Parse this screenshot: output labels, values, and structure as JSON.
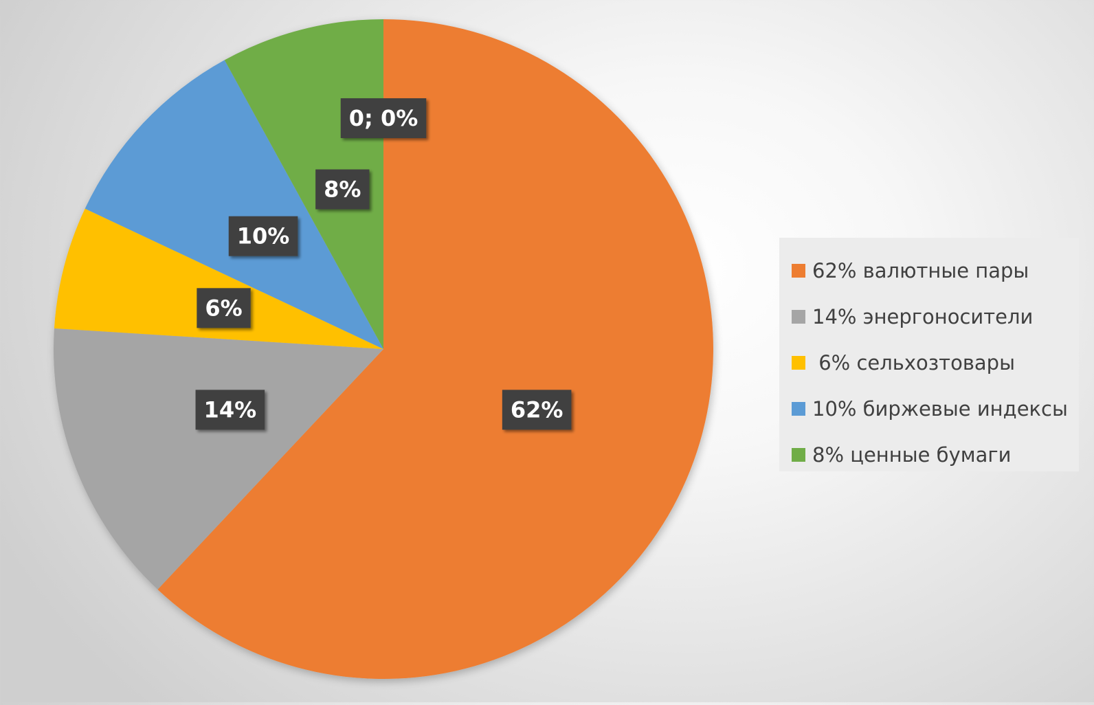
{
  "chart_data": {
    "type": "pie",
    "start_angle_deg": 0,
    "direction": "clockwise",
    "slices": [
      {
        "label": "62%",
        "value": 62,
        "color": "#ED7D31"
      },
      {
        "label": "14%",
        "value": 14,
        "color": "#A5A5A5"
      },
      {
        "label": "6%",
        "value": 6,
        "color": "#FFC000"
      },
      {
        "label": "10%",
        "value": 10,
        "color": "#5B9BD5"
      },
      {
        "label": "8%",
        "value": 8,
        "color": "#70AD47"
      },
      {
        "label": "0; 0%",
        "value": 0,
        "color": "#70AD47"
      }
    ],
    "legend": {
      "placement": "right",
      "entries": [
        {
          "text": "62% валютные пары",
          "color": "#ED7D31"
        },
        {
          "text": "14% энергоносители",
          "color": "#A5A5A5"
        },
        {
          "text": " 6% сельхозтовары",
          "color": "#FFC000"
        },
        {
          "text": "10% биржевые индексы",
          "color": "#5B9BD5"
        },
        {
          "text": "8% ценные бумаги",
          "color": "#70AD47"
        }
      ]
    }
  }
}
